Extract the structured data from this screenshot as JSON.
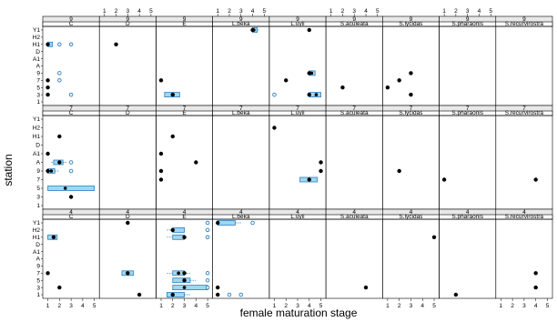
{
  "chart_data": {
    "type": "trellis-box-dot",
    "xlabel": "female maturation stage",
    "ylabel": "station",
    "x_ticks": [
      "1",
      "2",
      "3",
      "4",
      "5"
    ],
    "xlim": [
      0.8,
      5.2
    ],
    "stations": [
      "Y1",
      "H2",
      "H1",
      "D",
      "A1",
      "A",
      "9",
      "7",
      "5",
      "3",
      "1"
    ],
    "species": [
      "C",
      "D",
      "E",
      "L.beka",
      "L.uyii",
      "S.aculeata",
      "S.lycidas",
      "S.pharaonis",
      "S.recurvirostra"
    ],
    "colors": {
      "dot": "#000000",
      "outlier": "#2f7fc0",
      "box_fill": "#9fd8ef",
      "box_stroke": "#2f7fc0",
      "strip": "#e8e8e8"
    },
    "rows": [
      {
        "label": "9",
        "panels": [
          {
            "points": [
              {
                "s": "H1",
                "x": 1
              },
              {
                "s": "7",
                "x": 1
              },
              {
                "s": "5",
                "x": 1
              },
              {
                "s": "3",
                "x": 1
              }
            ],
            "boxes": [
              {
                "s": "H1",
                "lo": 1,
                "q1": 1,
                "med": 1,
                "q3": 1.4,
                "hi": 1.4
              }
            ],
            "outliers": [
              {
                "s": "H1",
                "x": 2
              },
              {
                "s": "H1",
                "x": 3
              },
              {
                "s": "9",
                "x": 2
              },
              {
                "s": "7",
                "x": 2
              },
              {
                "s": "3",
                "x": 3
              }
            ]
          },
          {
            "points": [
              {
                "s": "H1",
                "x": 2
              }
            ],
            "boxes": [],
            "outliers": []
          },
          {
            "points": [
              {
                "s": "7",
                "x": 1
              },
              {
                "s": "3",
                "x": 2
              }
            ],
            "boxes": [
              {
                "s": "3",
                "lo": 1.3,
                "q1": 1.3,
                "med": 2,
                "q3": 2.6,
                "hi": 2.6
              }
            ],
            "outliers": []
          },
          {
            "points": [
              {
                "s": "Y1",
                "x": 4
              }
            ],
            "boxes": [
              {
                "s": "Y1",
                "lo": 4,
                "q1": 4,
                "med": 4.1,
                "q3": 4.4,
                "hi": 4.6
              }
            ],
            "outliers": []
          },
          {
            "points": [
              {
                "s": "Y1",
                "x": 4
              },
              {
                "s": "7",
                "x": 2
              },
              {
                "s": "9",
                "x": 4
              },
              {
                "s": "3",
                "x": 4
              }
            ],
            "boxes": [
              {
                "s": "9",
                "lo": 3.8,
                "q1": 4,
                "med": 4.2,
                "q3": 4.5,
                "hi": 4.5
              },
              {
                "s": "3",
                "lo": 4,
                "q1": 4,
                "med": 4.6,
                "q3": 5,
                "hi": 5
              }
            ],
            "outliers": [
              {
                "s": "3",
                "x": 1
              }
            ]
          },
          {
            "points": [
              {
                "s": "5",
                "x": 2
              }
            ],
            "boxes": [],
            "outliers": []
          },
          {
            "points": [
              {
                "s": "9",
                "x": 3
              },
              {
                "s": "7",
                "x": 2
              },
              {
                "s": "5",
                "x": 1
              },
              {
                "s": "3",
                "x": 3
              }
            ],
            "boxes": [],
            "outliers": []
          },
          {
            "points": [],
            "boxes": [],
            "outliers": []
          },
          {
            "points": [],
            "boxes": [],
            "outliers": []
          }
        ]
      },
      {
        "label": "7",
        "panels": [
          {
            "points": [
              {
                "s": "H1",
                "x": 2
              },
              {
                "s": "A1",
                "x": 1
              },
              {
                "s": "A",
                "x": 2
              },
              {
                "s": "9",
                "x": 1
              },
              {
                "s": "3",
                "x": 3
              }
            ],
            "boxes": [
              {
                "s": "A",
                "lo": 1.3,
                "q1": 1.5,
                "med": 2,
                "q3": 2.3,
                "hi": 2.6
              },
              {
                "s": "9",
                "lo": 1,
                "q1": 1,
                "med": 1.3,
                "q3": 1.6,
                "hi": 2
              },
              {
                "s": "5",
                "lo": 1,
                "q1": 1,
                "med": 2.5,
                "q3": 5,
                "hi": 5
              }
            ],
            "outliers": [
              {
                "s": "A",
                "x": 3
              },
              {
                "s": "9",
                "x": 3
              }
            ]
          },
          {
            "points": [],
            "boxes": [],
            "outliers": []
          },
          {
            "points": [
              {
                "s": "H1",
                "x": 2
              },
              {
                "s": "A1",
                "x": 1
              },
              {
                "s": "A",
                "x": 4
              },
              {
                "s": "9",
                "x": 1
              },
              {
                "s": "7",
                "x": 1
              }
            ],
            "boxes": [],
            "outliers": []
          },
          {
            "points": [],
            "boxes": [],
            "outliers": []
          },
          {
            "points": [
              {
                "s": "H2",
                "x": 1
              },
              {
                "s": "A",
                "x": 5
              },
              {
                "s": "9",
                "x": 5
              },
              {
                "s": "7",
                "x": 4
              }
            ],
            "boxes": [
              {
                "s": "7",
                "lo": 3.2,
                "q1": 3.2,
                "med": 4,
                "q3": 4.7,
                "hi": 4.7
              }
            ],
            "outliers": []
          },
          {
            "points": [],
            "boxes": [],
            "outliers": []
          },
          {
            "points": [
              {
                "s": "9",
                "x": 2
              }
            ],
            "boxes": [],
            "outliers": []
          },
          {
            "points": [
              {
                "s": "7",
                "x": 1
              }
            ],
            "boxes": [],
            "outliers": []
          },
          {
            "points": [
              {
                "s": "7",
                "x": 4
              }
            ],
            "boxes": [],
            "outliers": []
          }
        ]
      },
      {
        "label": "4",
        "panels": [
          {
            "points": [
              {
                "s": "H1",
                "x": 1.5
              },
              {
                "s": "7",
                "x": 1
              },
              {
                "s": "3",
                "x": 2
              }
            ],
            "boxes": [
              {
                "s": "H1",
                "lo": 1,
                "q1": 1,
                "med": 1.5,
                "q3": 1.8,
                "hi": 1.8
              }
            ],
            "outliers": []
          },
          {
            "points": [
              {
                "s": "Y1",
                "x": 3
              },
              {
                "s": "7",
                "x": 3
              },
              {
                "s": "1",
                "x": 4
              }
            ],
            "boxes": [
              {
                "s": "7",
                "lo": 2.5,
                "q1": 2.5,
                "med": 3,
                "q3": 3.5,
                "hi": 3.5
              }
            ],
            "outliers": []
          },
          {
            "points": [
              {
                "s": "H2",
                "x": 2
              },
              {
                "s": "H1",
                "x": 3
              },
              {
                "s": "7",
                "x": 3
              },
              {
                "s": "5",
                "x": 3
              },
              {
                "s": "1",
                "x": 2
              }
            ],
            "boxes": [
              {
                "s": "H2",
                "lo": 1.5,
                "q1": 2,
                "med": 2,
                "q3": 3,
                "hi": 3
              },
              {
                "s": "H1",
                "lo": 1.5,
                "q1": 2,
                "med": 3,
                "q3": 3,
                "hi": 3
              },
              {
                "s": "7",
                "lo": 1.5,
                "q1": 2,
                "med": 2.5,
                "q3": 3,
                "hi": 3.5
              },
              {
                "s": "5",
                "lo": 2,
                "q1": 2,
                "med": 3,
                "q3": 3.5,
                "hi": 4
              },
              {
                "s": "3",
                "lo": 2,
                "q1": 2,
                "med": 3,
                "q3": 5,
                "hi": 5
              },
              {
                "s": "1",
                "lo": 1.5,
                "q1": 1.5,
                "med": 2,
                "q3": 3,
                "hi": 3.5
              }
            ],
            "outliers": [
              {
                "s": "Y1",
                "x": 5
              },
              {
                "s": "H2",
                "x": 5
              },
              {
                "s": "H1",
                "x": 5
              },
              {
                "s": "7",
                "x": 5
              },
              {
                "s": "5",
                "x": 5
              },
              {
                "s": "3",
                "x": 5
              }
            ]
          },
          {
            "points": [
              {
                "s": "Y1",
                "x": 1
              },
              {
                "s": "3",
                "x": 1
              },
              {
                "s": "1",
                "x": 1
              }
            ],
            "boxes": [
              {
                "s": "Y1",
                "lo": 1,
                "q1": 1,
                "med": 1,
                "q3": 2.5,
                "hi": 3
              }
            ],
            "outliers": [
              {
                "s": "Y1",
                "x": 4
              },
              {
                "s": "1",
                "x": 2
              },
              {
                "s": "1",
                "x": 3
              }
            ]
          },
          {
            "points": [],
            "boxes": [],
            "outliers": []
          },
          {
            "points": [
              {
                "s": "3",
                "x": 4
              }
            ],
            "boxes": [],
            "outliers": []
          },
          {
            "points": [
              {
                "s": "H1",
                "x": 5
              }
            ],
            "boxes": [],
            "outliers": []
          },
          {
            "points": [
              {
                "s": "1",
                "x": 2
              }
            ],
            "boxes": [],
            "outliers": []
          },
          {
            "points": [
              {
                "s": "7",
                "x": 4
              },
              {
                "s": "3",
                "x": 4
              }
            ],
            "boxes": [],
            "outliers": []
          }
        ]
      }
    ]
  }
}
